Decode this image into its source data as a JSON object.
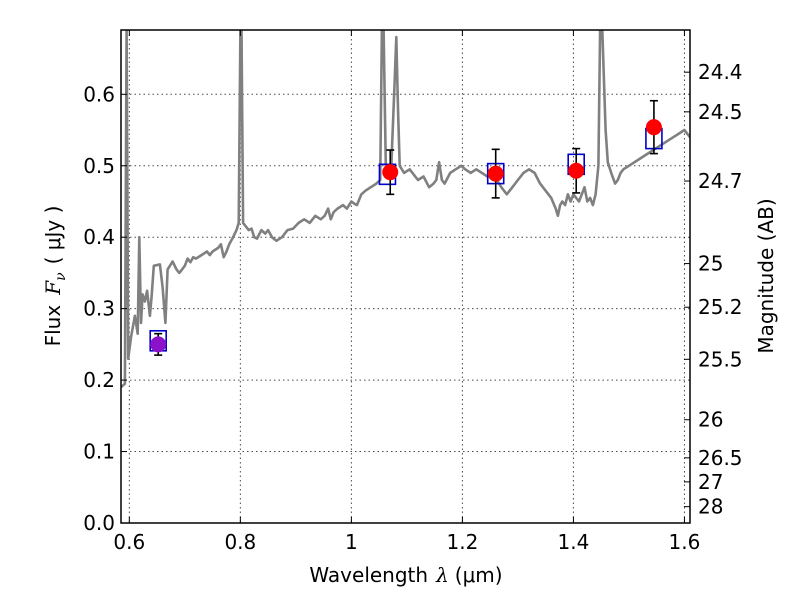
{
  "chart_data": {
    "type": "line",
    "xlabel_text": "Wavelength",
    "xlabel_symbol": "λ",
    "xlabel_unit": "(μm)",
    "ylabel_text": "Flux",
    "ylabel_symbol": "F",
    "ylabel_sub": "ν",
    "ylabel_unit": "( μJy )",
    "y2label": "Magnitude (AB)",
    "xlim": [
      0.585,
      1.61
    ],
    "ylim": [
      0.0,
      0.69
    ],
    "grid": true,
    "x_ticks": [
      0.6,
      0.8,
      1.0,
      1.2,
      1.4,
      1.6
    ],
    "x_tick_labels": [
      "0.6",
      "0.8",
      "1",
      "1.2",
      "1.4",
      "1.6"
    ],
    "y_ticks": [
      0.0,
      0.1,
      0.2,
      0.3,
      0.4,
      0.5,
      0.6
    ],
    "y_tick_labels": [
      "0.0",
      "0.1",
      "0.2",
      "0.3",
      "0.4",
      "0.5",
      "0.6"
    ],
    "magnitude_ticks": [
      {
        "label": "24.4",
        "value": 24.4
      },
      {
        "label": "24.5",
        "value": 24.5
      },
      {
        "label": "24.7",
        "value": 24.7
      },
      {
        "label": "25",
        "value": 25.0
      },
      {
        "label": "25.2",
        "value": 25.2
      },
      {
        "label": "25.5",
        "value": 25.5
      },
      {
        "label": "26",
        "value": 26.0
      },
      {
        "label": "26.5",
        "value": 26.5
      },
      {
        "label": "27",
        "value": 27.0
      },
      {
        "label": "28",
        "value": 28.0
      }
    ],
    "series": [
      {
        "type": "line",
        "color": "#808080",
        "points": [
          [
            0.585,
            0.19
          ],
          [
            0.592,
            0.195
          ],
          [
            0.595,
            0.69
          ],
          [
            0.598,
            0.23
          ],
          [
            0.603,
            0.26
          ],
          [
            0.61,
            0.29
          ],
          [
            0.615,
            0.265
          ],
          [
            0.618,
            0.4
          ],
          [
            0.621,
            0.28
          ],
          [
            0.624,
            0.32
          ],
          [
            0.628,
            0.31
          ],
          [
            0.632,
            0.325
          ],
          [
            0.637,
            0.29
          ],
          [
            0.64,
            0.315
          ],
          [
            0.644,
            0.36
          ],
          [
            0.655,
            0.362
          ],
          [
            0.66,
            0.33
          ],
          [
            0.665,
            0.28
          ],
          [
            0.669,
            0.355
          ],
          [
            0.673,
            0.36
          ],
          [
            0.678,
            0.366
          ],
          [
            0.685,
            0.355
          ],
          [
            0.69,
            0.35
          ],
          [
            0.695,
            0.355
          ],
          [
            0.7,
            0.36
          ],
          [
            0.705,
            0.37
          ],
          [
            0.71,
            0.365
          ],
          [
            0.715,
            0.372
          ],
          [
            0.72,
            0.37
          ],
          [
            0.73,
            0.375
          ],
          [
            0.74,
            0.38
          ],
          [
            0.745,
            0.375
          ],
          [
            0.75,
            0.38
          ],
          [
            0.76,
            0.385
          ],
          [
            0.765,
            0.39
          ],
          [
            0.77,
            0.372
          ],
          [
            0.775,
            0.38
          ],
          [
            0.78,
            0.39
          ],
          [
            0.787,
            0.4
          ],
          [
            0.793,
            0.41
          ],
          [
            0.797,
            0.42
          ],
          [
            0.8,
            0.69
          ],
          [
            0.802,
            0.69
          ],
          [
            0.805,
            0.42
          ],
          [
            0.81,
            0.415
          ],
          [
            0.815,
            0.41
          ],
          [
            0.82,
            0.412
          ],
          [
            0.825,
            0.4
          ],
          [
            0.83,
            0.398
          ],
          [
            0.838,
            0.41
          ],
          [
            0.845,
            0.405
          ],
          [
            0.85,
            0.41
          ],
          [
            0.857,
            0.4
          ],
          [
            0.865,
            0.395
          ],
          [
            0.875,
            0.4
          ],
          [
            0.885,
            0.41
          ],
          [
            0.895,
            0.412
          ],
          [
            0.905,
            0.42
          ],
          [
            0.915,
            0.425
          ],
          [
            0.925,
            0.42
          ],
          [
            0.935,
            0.43
          ],
          [
            0.945,
            0.425
          ],
          [
            0.952,
            0.43
          ],
          [
            0.958,
            0.44
          ],
          [
            0.963,
            0.425
          ],
          [
            0.968,
            0.435
          ],
          [
            0.975,
            0.44
          ],
          [
            0.985,
            0.445
          ],
          [
            0.992,
            0.44
          ],
          [
            1.0,
            0.45
          ],
          [
            1.005,
            0.447
          ],
          [
            1.01,
            0.445
          ],
          [
            1.018,
            0.46
          ],
          [
            1.025,
            0.465
          ],
          [
            1.035,
            0.47
          ],
          [
            1.045,
            0.475
          ],
          [
            1.052,
            0.48
          ],
          [
            1.055,
            0.69
          ],
          [
            1.058,
            0.69
          ],
          [
            1.062,
            0.5
          ],
          [
            1.068,
            0.495
          ],
          [
            1.072,
            0.5
          ],
          [
            1.075,
            0.56
          ],
          [
            1.078,
            0.62
          ],
          [
            1.081,
            0.68
          ],
          [
            1.084,
            0.58
          ],
          [
            1.087,
            0.5
          ],
          [
            1.095,
            0.49
          ],
          [
            1.105,
            0.495
          ],
          [
            1.115,
            0.485
          ],
          [
            1.12,
            0.48
          ],
          [
            1.13,
            0.485
          ],
          [
            1.14,
            0.47
          ],
          [
            1.148,
            0.475
          ],
          [
            1.153,
            0.48
          ],
          [
            1.158,
            0.505
          ],
          [
            1.163,
            0.48
          ],
          [
            1.168,
            0.475
          ],
          [
            1.178,
            0.49
          ],
          [
            1.188,
            0.495
          ],
          [
            1.198,
            0.5
          ],
          [
            1.205,
            0.495
          ],
          [
            1.215,
            0.49
          ],
          [
            1.225,
            0.495
          ],
          [
            1.235,
            0.49
          ],
          [
            1.245,
            0.485
          ],
          [
            1.255,
            0.495
          ],
          [
            1.262,
            0.48
          ],
          [
            1.27,
            0.47
          ],
          [
            1.28,
            0.46
          ],
          [
            1.29,
            0.47
          ],
          [
            1.3,
            0.48
          ],
          [
            1.31,
            0.49
          ],
          [
            1.32,
            0.495
          ],
          [
            1.33,
            0.49
          ],
          [
            1.34,
            0.475
          ],
          [
            1.35,
            0.465
          ],
          [
            1.36,
            0.455
          ],
          [
            1.368,
            0.44
          ],
          [
            1.372,
            0.43
          ],
          [
            1.376,
            0.445
          ],
          [
            1.38,
            0.45
          ],
          [
            1.385,
            0.445
          ],
          [
            1.39,
            0.46
          ],
          [
            1.395,
            0.45
          ],
          [
            1.4,
            0.46
          ],
          [
            1.405,
            0.455
          ],
          [
            1.41,
            0.45
          ],
          [
            1.415,
            0.46
          ],
          [
            1.42,
            0.47
          ],
          [
            1.425,
            0.45
          ],
          [
            1.43,
            0.455
          ],
          [
            1.435,
            0.445
          ],
          [
            1.44,
            0.46
          ],
          [
            1.445,
            0.5
          ],
          [
            1.448,
            0.69
          ],
          [
            1.452,
            0.69
          ],
          [
            1.458,
            0.55
          ],
          [
            1.462,
            0.505
          ],
          [
            1.468,
            0.49
          ],
          [
            1.475,
            0.475
          ],
          [
            1.48,
            0.48
          ],
          [
            1.485,
            0.49
          ],
          [
            1.49,
            0.495
          ],
          [
            1.5,
            0.5
          ],
          [
            1.51,
            0.505
          ],
          [
            1.52,
            0.51
          ],
          [
            1.53,
            0.515
          ],
          [
            1.54,
            0.52
          ],
          [
            1.55,
            0.525
          ],
          [
            1.56,
            0.53
          ],
          [
            1.57,
            0.535
          ],
          [
            1.58,
            0.54
          ],
          [
            1.59,
            0.545
          ],
          [
            1.6,
            0.55
          ],
          [
            1.61,
            0.54
          ]
        ]
      },
      {
        "type": "scatter",
        "marker": "square",
        "color": "#0000cc",
        "points": [
          [
            0.652,
            0.255
          ],
          [
            1.065,
            0.488
          ],
          [
            1.26,
            0.489
          ],
          [
            1.405,
            0.502
          ],
          [
            1.545,
            0.538
          ]
        ]
      },
      {
        "type": "scatter",
        "marker": "circle",
        "color": "#ff0000",
        "points": [
          [
            1.07,
            0.491
          ],
          [
            1.26,
            0.489
          ],
          [
            1.405,
            0.493
          ],
          [
            1.545,
            0.554
          ]
        ],
        "errors": [
          0.031,
          0.034,
          0.031,
          0.037
        ]
      },
      {
        "type": "scatter",
        "marker": "circle",
        "color": "#8b12c8",
        "points": [
          [
            0.652,
            0.25
          ]
        ],
        "errors": [
          0.015
        ]
      }
    ]
  }
}
